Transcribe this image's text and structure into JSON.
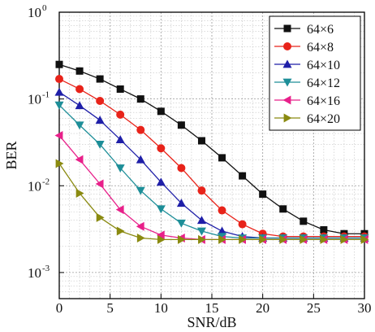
{
  "chart_data": {
    "type": "line",
    "xlabel": "SNR/dB",
    "ylabel": "BER",
    "xlim": [
      0,
      30
    ],
    "ylim": [
      0.0005,
      1
    ],
    "yscale": "log",
    "grid": true,
    "legend_position": "top-right",
    "x_ticks": [
      0,
      5,
      10,
      15,
      20,
      25,
      30
    ],
    "y_ticks": [
      {
        "base": "10",
        "exp": "0",
        "value": 1
      },
      {
        "base": "10",
        "exp": "-1",
        "value": 0.1
      },
      {
        "base": "10",
        "exp": "-2",
        "value": 0.01
      },
      {
        "base": "10",
        "exp": "-3",
        "value": 0.001
      }
    ],
    "x": [
      0,
      2,
      4,
      6,
      8,
      10,
      12,
      14,
      16,
      18,
      20,
      22,
      24,
      26,
      28,
      30
    ],
    "series": [
      {
        "name": "64×6",
        "marker": "square",
        "color": "#111111",
        "values": [
          0.25,
          0.21,
          0.17,
          0.13,
          0.1,
          0.072,
          0.05,
          0.033,
          0.021,
          0.013,
          0.008,
          0.0054,
          0.0039,
          0.0031,
          0.0028,
          0.0028
        ]
      },
      {
        "name": "64×8",
        "marker": "circle",
        "color": "#e8231a",
        "values": [
          0.17,
          0.13,
          0.095,
          0.066,
          0.044,
          0.027,
          0.016,
          0.0088,
          0.0052,
          0.0036,
          0.0028,
          0.0026,
          0.0026,
          0.0026,
          0.0026,
          0.0026
        ]
      },
      {
        "name": "64×10",
        "marker": "triangle-up",
        "color": "#1f1fa8",
        "values": [
          0.12,
          0.084,
          0.057,
          0.034,
          0.02,
          0.011,
          0.0063,
          0.004,
          0.003,
          0.0026,
          0.0025,
          0.0025,
          0.0025,
          0.0025,
          0.0025,
          0.0025
        ]
      },
      {
        "name": "64×12",
        "marker": "triangle-down",
        "color": "#1d8e98",
        "values": [
          0.085,
          0.05,
          0.03,
          0.016,
          0.0088,
          0.0054,
          0.0037,
          0.003,
          0.0026,
          0.0025,
          0.0025,
          0.0025,
          0.0025,
          0.0025,
          0.0025,
          0.0025
        ]
      },
      {
        "name": "64×16",
        "marker": "triangle-left",
        "color": "#e8208a",
        "values": [
          0.038,
          0.02,
          0.0105,
          0.0053,
          0.0034,
          0.0027,
          0.0025,
          0.0024,
          0.0024,
          0.0024,
          0.0024,
          0.0024,
          0.0024,
          0.0024,
          0.0024,
          0.0024
        ]
      },
      {
        "name": "64×20",
        "marker": "triangle-right",
        "color": "#8a8a10",
        "values": [
          0.018,
          0.0082,
          0.0043,
          0.003,
          0.0025,
          0.0024,
          0.0024,
          0.0024,
          0.0024,
          0.0024,
          0.0024,
          0.0024,
          0.0024,
          0.0024,
          0.0024,
          0.0024
        ]
      }
    ]
  }
}
